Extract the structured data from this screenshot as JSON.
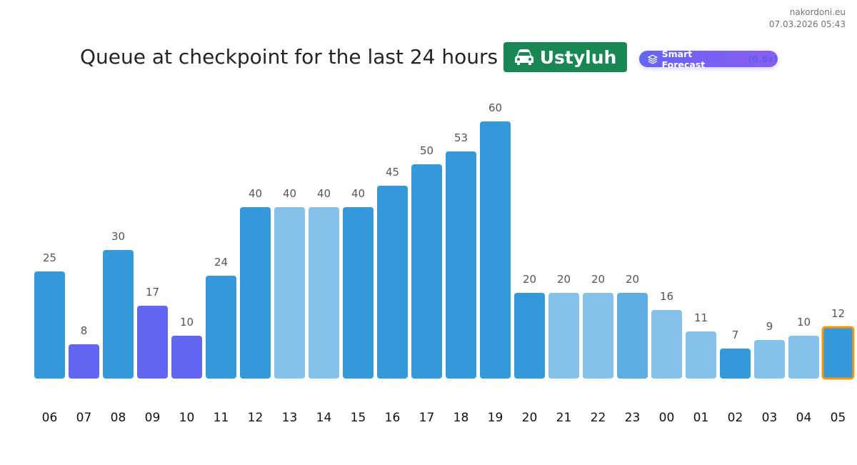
{
  "site": {
    "name": "nakordoni.eu",
    "timestamp": "07.03.2026 05:43"
  },
  "header": {
    "title": "Queue at checkpoint for the last 24 hours",
    "checkpoint": "Ustyluh",
    "checkpoint_icon": "car-icon",
    "forecast_label": "Smart Forecast",
    "forecast_multiplier": "(0.8x)",
    "forecast_icon": "layers-icon"
  },
  "colors": {
    "dark": "#3498db",
    "light": "#85c1e9",
    "mid": "#5dade2",
    "purple": "#6366f1",
    "highlight": "#ff9800",
    "checkpoint_bg": "#198754"
  },
  "chart_data": {
    "type": "bar",
    "title": "Queue at checkpoint for the last 24 hours",
    "categories": [
      "06",
      "07",
      "08",
      "09",
      "10",
      "11",
      "12",
      "13",
      "14",
      "15",
      "16",
      "17",
      "18",
      "19",
      "20",
      "21",
      "22",
      "23",
      "00",
      "01",
      "02",
      "03",
      "04",
      "05"
    ],
    "values": [
      25,
      8,
      30,
      17,
      10,
      24,
      40,
      40,
      40,
      40,
      45,
      50,
      53,
      60,
      20,
      20,
      20,
      20,
      16,
      11,
      7,
      9,
      10,
      12
    ],
    "bar_styles": [
      "dark",
      "purple",
      "dark",
      "purple",
      "purple",
      "dark",
      "dark",
      "light",
      "light",
      "dark",
      "dark",
      "dark",
      "dark",
      "dark",
      "dark",
      "light",
      "light",
      "mid",
      "light",
      "light",
      "dark",
      "light",
      "light",
      "dark"
    ],
    "highlighted": "05",
    "ylim": [
      0,
      60
    ],
    "xlabel": "",
    "ylabel": "",
    "grid": false
  }
}
